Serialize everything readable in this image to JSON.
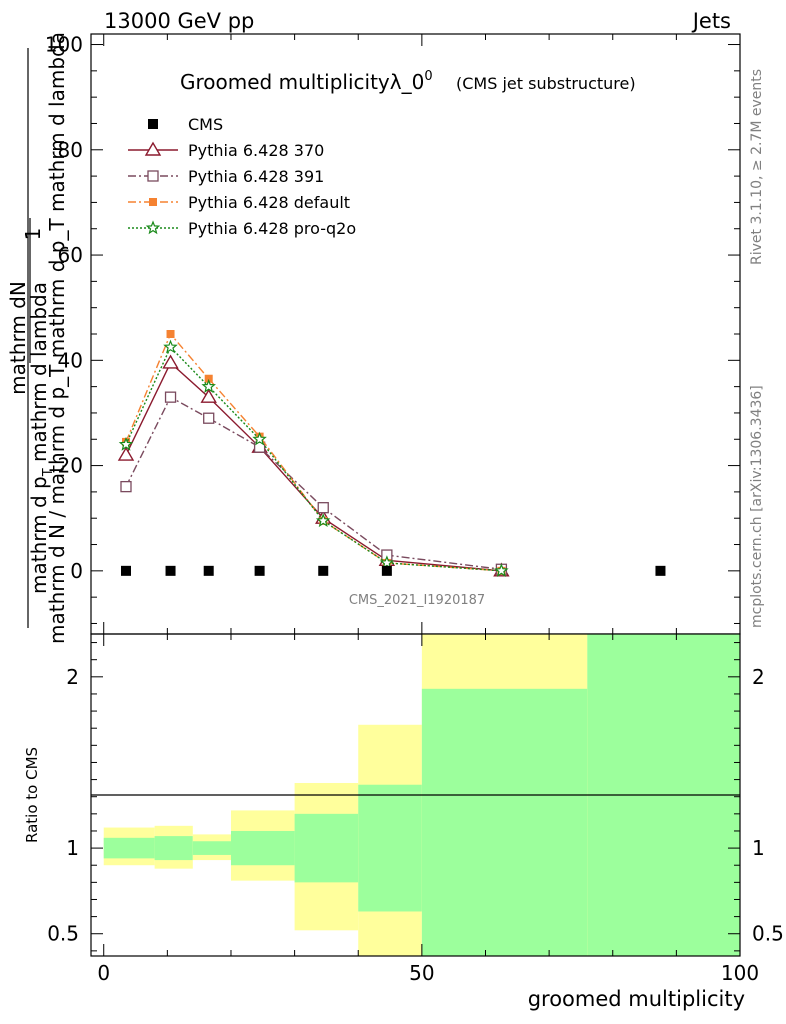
{
  "header": {
    "left": "13000 GeV pp",
    "right": "Jets"
  },
  "side_labels": {
    "rivet": "Rivet 3.1.10, ≥ 2.7M events",
    "mcplots": "mcplots.cern.ch [arXiv:1306.3436]"
  },
  "chart_data": [
    {
      "type": "scatter",
      "title": "Groomed multiplicityλ_0",
      "title_sup": "0",
      "subtitle": "(CMS jet substructure)",
      "watermark": "CMS_2021_I1920187",
      "ylabel_num": "1",
      "ylabel_num2": "mathrm dN",
      "ylabel_den": "mathrm d N / mathrm d p_T mathrm d p_T mathrm d lambda",
      "ylabel_frac_top": "mathrm d p",
      "ylabel_frac_top_sub": "T",
      "ylabel_frac_rest": " mathrm d lambda",
      "xlim": [
        -2,
        100
      ],
      "ylim": [
        -12,
        102
      ],
      "yticks": [
        0,
        20,
        40,
        60,
        80,
        100
      ],
      "yticks_labels": [
        "0",
        "20",
        "40",
        "60",
        "80",
        "100"
      ],
      "legend_position": "top-left",
      "series": [
        {
          "name": "CMS",
          "color": "#000000",
          "marker": "square",
          "line": "none",
          "x": [
            3.5,
            10.5,
            16.5,
            24.5,
            34.5,
            44.5,
            87.5
          ],
          "y": [
            0,
            0,
            0,
            0,
            0,
            0,
            0
          ]
        },
        {
          "name": "Pythia 6.428 370",
          "color": "#8b1a2e",
          "marker": "triangle-open",
          "line": "solid",
          "x": [
            3.5,
            10.5,
            16.5,
            24.5,
            34.5,
            44.5,
            62.5
          ],
          "y": [
            22,
            39.5,
            33,
            23.5,
            10,
            2,
            0
          ]
        },
        {
          "name": "Pythia 6.428 391",
          "color": "#7a4a5e",
          "marker": "square-open",
          "line": "dashdot",
          "x": [
            3.5,
            10.5,
            16.5,
            24.5,
            34.5,
            44.5,
            62.5
          ],
          "y": [
            16,
            33,
            29,
            23.5,
            12,
            3,
            0.3
          ]
        },
        {
          "name": "Pythia 6.428 default",
          "color": "#f58231",
          "marker": "square-filled",
          "line": "dashdot",
          "x": [
            3.5,
            10.5,
            16.5,
            24.5,
            34.5,
            44.5,
            62.5
          ],
          "y": [
            24.5,
            45,
            36.5,
            25.5,
            9.5,
            1.5,
            0
          ]
        },
        {
          "name": "Pythia 6.428 pro-q2o",
          "color": "#1a8a1a",
          "marker": "star",
          "line": "dotted",
          "x": [
            3.5,
            10.5,
            16.5,
            24.5,
            34.5,
            44.5,
            62.5
          ],
          "y": [
            24,
            42.5,
            35,
            25,
            9.5,
            1.5,
            0
          ]
        }
      ]
    },
    {
      "type": "area",
      "ylabel": "Ratio to CMS",
      "xlabel": "groomed multiplicity",
      "xlim": [
        -2,
        100
      ],
      "ylim": [
        0.37,
        2.25
      ],
      "yticks": [
        0.5,
        1,
        2
      ],
      "yticks_labels": [
        "0.5",
        "1",
        "2"
      ],
      "xticks": [
        0,
        50,
        100
      ],
      "xticks_labels": [
        "0",
        "50",
        "100"
      ],
      "bins": [
        {
          "x0": 0,
          "x1": 8,
          "green_lo": 0.94,
          "green_hi": 1.06,
          "yellow_lo": 0.9,
          "yellow_hi": 1.12
        },
        {
          "x0": 8,
          "x1": 14,
          "green_lo": 0.93,
          "green_hi": 1.07,
          "yellow_lo": 0.88,
          "yellow_hi": 1.13
        },
        {
          "x0": 14,
          "x1": 20,
          "green_lo": 0.96,
          "green_hi": 1.04,
          "yellow_lo": 0.93,
          "yellow_hi": 1.08
        },
        {
          "x0": 20,
          "x1": 30,
          "green_lo": 0.9,
          "green_hi": 1.1,
          "yellow_lo": 0.81,
          "yellow_hi": 1.22
        },
        {
          "x0": 30,
          "x1": 40,
          "green_lo": 0.8,
          "green_hi": 1.2,
          "yellow_lo": 0.52,
          "yellow_hi": 1.38
        },
        {
          "x0": 40,
          "x1": 50,
          "green_lo": 0.63,
          "green_hi": 1.37,
          "yellow_lo": 0.37,
          "yellow_hi": 1.72
        },
        {
          "x0": 50,
          "x1": 76,
          "green_lo": 0.37,
          "green_hi": 1.93,
          "yellow_lo": 0.37,
          "yellow_hi": 2.25
        },
        {
          "x0": 76,
          "x1": 100,
          "green_lo": 0.37,
          "green_hi": 2.25,
          "yellow_lo": 0.37,
          "yellow_hi": 2.25
        }
      ],
      "green_color": "#9cff9c",
      "yellow_color": "#ffff9c"
    }
  ]
}
